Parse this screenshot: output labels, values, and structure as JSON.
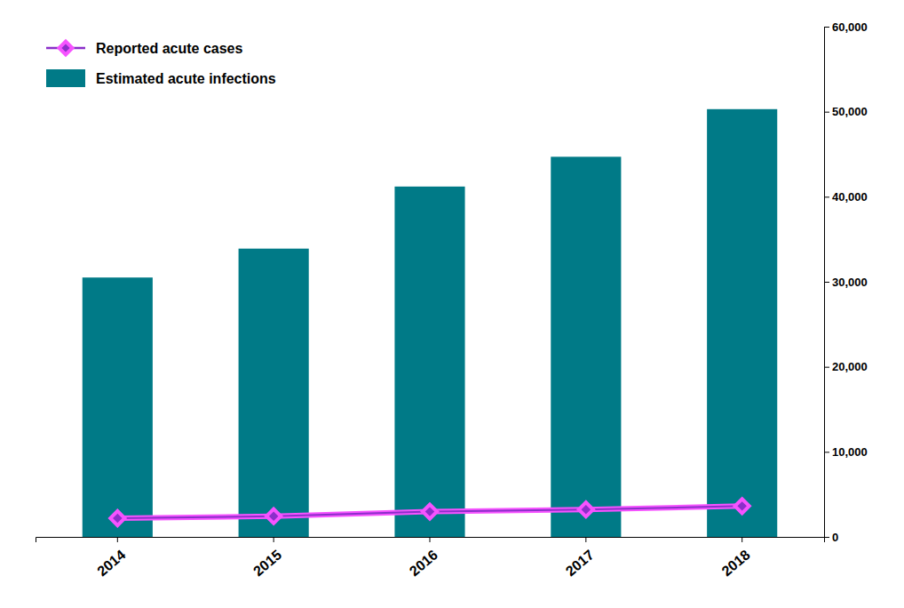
{
  "chart_data": {
    "type": "bar",
    "categories": [
      "2014",
      "2015",
      "2016",
      "2017",
      "2018"
    ],
    "series": [
      {
        "name": "Reported acute cases",
        "type": "line",
        "marker": "diamond",
        "color": "#8B2FC9",
        "values": [
          2194,
          2436,
          2967,
          3216,
          3621
        ]
      },
      {
        "name": "Estimated acute infections",
        "type": "bar",
        "color": "#007A87",
        "values": [
          30500,
          33900,
          41200,
          44700,
          50300
        ]
      }
    ],
    "ylim": [
      0,
      60000
    ],
    "yticks": [
      0,
      {
        "value": 10000,
        "label": "10,000"
      },
      {
        "value": 20000,
        "label": "20,000"
      },
      {
        "value": 30000,
        "label": "30,000"
      },
      {
        "value": 40000,
        "label": "40,000"
      },
      {
        "value": 50000,
        "label": "50,000"
      },
      {
        "value": 60000,
        "label": "60,000"
      }
    ],
    "grid": false,
    "legend": "upper left"
  }
}
